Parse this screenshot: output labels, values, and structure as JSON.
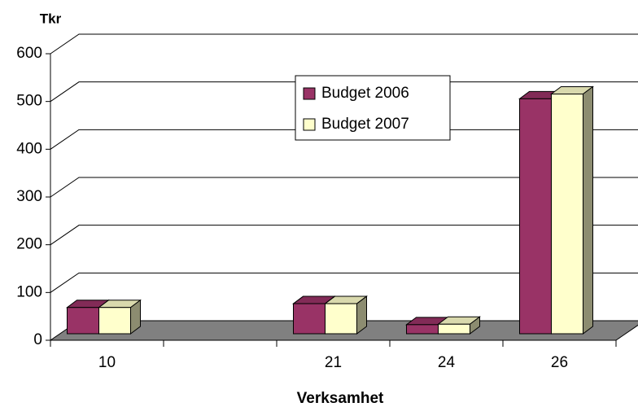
{
  "chart_data": {
    "type": "bar3d",
    "y_label": "Tkr",
    "x_label": "Verksamhet",
    "categories": [
      "10",
      null,
      "21",
      "24",
      "26"
    ],
    "series": [
      {
        "name": "Budget 2006",
        "color": "#993366",
        "values": [
          55,
          null,
          63,
          19,
          492
        ]
      },
      {
        "name": "Budget 2007",
        "color": "#ffffcc",
        "values": [
          55,
          null,
          63,
          20,
          502
        ]
      }
    ],
    "ylim": [
      0,
      600
    ],
    "yticks": [
      0,
      100,
      200,
      300,
      400,
      500,
      600
    ],
    "grid": true
  }
}
